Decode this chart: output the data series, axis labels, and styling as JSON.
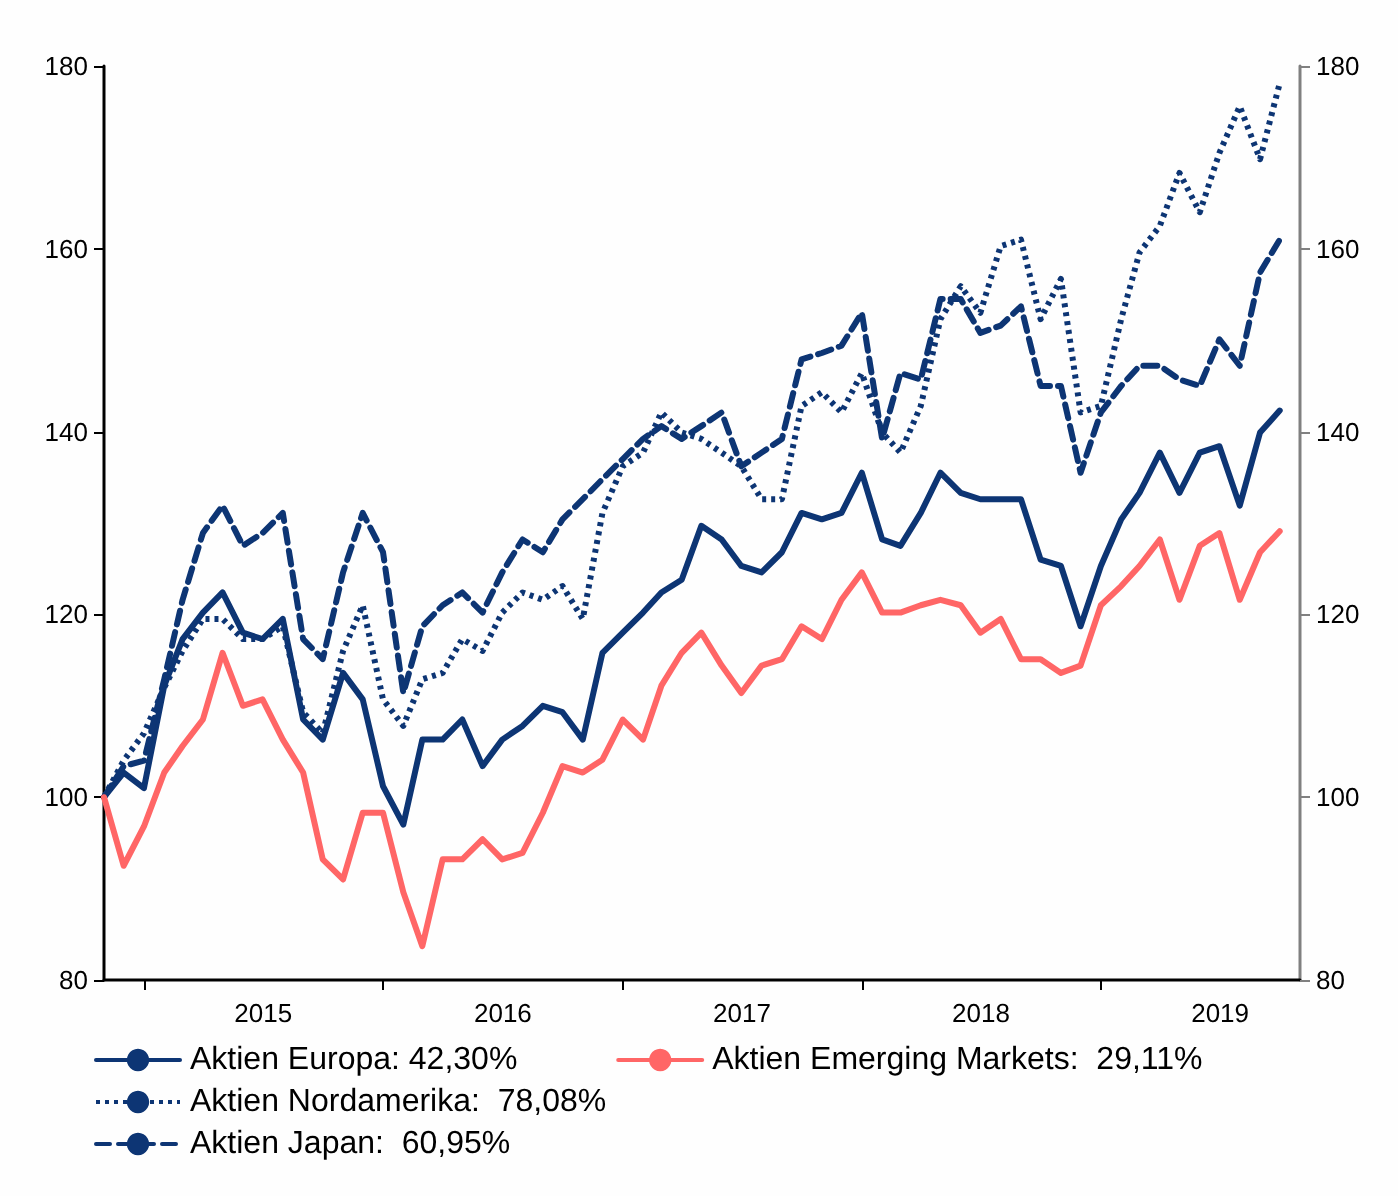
{
  "chart_data": {
    "type": "line",
    "x": [
      "2014-11",
      "2014-12",
      "2015-01",
      "2015-02",
      "2015-03",
      "2015-04",
      "2015-05",
      "2015-06",
      "2015-07",
      "2015-08",
      "2015-09",
      "2015-10",
      "2015-11",
      "2015-12",
      "2016-01",
      "2016-02",
      "2016-03",
      "2016-04",
      "2016-05",
      "2016-06",
      "2016-07",
      "2016-08",
      "2016-09",
      "2016-10",
      "2016-11",
      "2016-12",
      "2017-01",
      "2017-02",
      "2017-03",
      "2017-04",
      "2017-05",
      "2017-06",
      "2017-07",
      "2017-08",
      "2017-09",
      "2017-10",
      "2017-11",
      "2017-12",
      "2018-01",
      "2018-02",
      "2018-03",
      "2018-04",
      "2018-05",
      "2018-06",
      "2018-07",
      "2018-08",
      "2018-09",
      "2018-10",
      "2018-11",
      "2018-12",
      "2019-01",
      "2019-02",
      "2019-03",
      "2019-04",
      "2019-05",
      "2019-06",
      "2019-07",
      "2019-08",
      "2019-09",
      "2019-10"
    ],
    "series": [
      {
        "name": "Aktien Europa: 42,30%",
        "color": "#0d3574",
        "line_style": "solid",
        "values": [
          100,
          102.7,
          101,
          112.2,
          117.3,
          120.2,
          122.4,
          118,
          117.3,
          119.5,
          108.5,
          106.3,
          113.6,
          110.7,
          101.2,
          97,
          106.3,
          106.3,
          108.5,
          103.4,
          106.3,
          107.8,
          110,
          109.3,
          106.3,
          115.8,
          118,
          120.2,
          122.4,
          123.8,
          129.7,
          128.2,
          125.3,
          124.6,
          126.8,
          131.1,
          130.4,
          131.1,
          135.5,
          128.2,
          127.5,
          131.1,
          135.5,
          133.3,
          132.6,
          132.6,
          132.6,
          126,
          125.3,
          118.7,
          125.3,
          130.4,
          133.3,
          137.7,
          133.3,
          137.7,
          138.4,
          131.9,
          139.9,
          142.3
        ]
      },
      {
        "name": "Aktien Nordamerika:  78,08%",
        "color": "#0d3574",
        "line_style": "dotted",
        "values": [
          100,
          104,
          107,
          112,
          116,
          119.5,
          119.5,
          117.3,
          117.3,
          118.7,
          109.3,
          107,
          116,
          121,
          110.7,
          107.8,
          112.9,
          113.6,
          117.3,
          116,
          120.2,
          122.4,
          121.6,
          123.1,
          119.5,
          131.1,
          136.2,
          137.7,
          142.1,
          139.9,
          139.2,
          137.7,
          136.2,
          132.6,
          132.6,
          142.8,
          144.3,
          142.1,
          146.4,
          139.9,
          137.7,
          142.8,
          152.3,
          155.9,
          153,
          160.3,
          161,
          152.3,
          156.7,
          142.1,
          142.8,
          152.3,
          159.6,
          162.5,
          168.3,
          164,
          170.5,
          175.6,
          169.8,
          178.1
        ]
      },
      {
        "name": "Aktien Japan:  60,95%",
        "color": "#0d3574",
        "line_style": "dashed",
        "values": [
          100,
          103.4,
          104,
          112.9,
          121.6,
          128.9,
          131.9,
          127.5,
          128.9,
          131.1,
          117.3,
          115.1,
          124.6,
          131.1,
          126.8,
          111.4,
          118.7,
          121,
          122.4,
          120.2,
          124.6,
          128.2,
          126.8,
          130.4,
          132.6,
          134.8,
          137,
          139.2,
          140.6,
          139.2,
          140.6,
          142.1,
          136.2,
          137.7,
          139.2,
          147.9,
          148.6,
          149.4,
          153,
          139.2,
          146.4,
          145.7,
          154.5,
          154.5,
          150.8,
          151.6,
          153.7,
          145,
          145,
          135.5,
          142.1,
          145,
          147.2,
          147.2,
          145.7,
          145,
          150.1,
          147.2,
          157.4,
          161
        ]
      },
      {
        "name": "Aktien Emerging Markets:  29,11%",
        "color": "#ff6666",
        "line_style": "solid",
        "values": [
          100,
          92.5,
          96.8,
          102.7,
          105.6,
          108.5,
          115.8,
          110,
          110.7,
          106.3,
          102.7,
          93.2,
          91,
          98.3,
          98.3,
          89.6,
          83.7,
          93.2,
          93.2,
          95.4,
          93.2,
          93.9,
          98.3,
          103.4,
          102.7,
          104.1,
          108.5,
          106.3,
          112.2,
          115.8,
          118,
          114.4,
          111.4,
          114.4,
          115.1,
          118.7,
          117.3,
          121.6,
          124.6,
          120.2,
          120.2,
          121,
          121.6,
          121,
          118,
          119.5,
          115.1,
          115.1,
          113.6,
          114.4,
          121,
          123.1,
          125.3,
          128.2,
          121.6,
          127.5,
          128.9,
          121.6,
          126.8,
          129.1
        ]
      }
    ],
    "xlim": [
      "2014-11-01",
      "2019-11-01"
    ],
    "xticks": [
      {
        "value": "2015-01-01",
        "label": null
      },
      {
        "value": "2016-01-01",
        "label": null
      },
      {
        "value": "2017-01-01",
        "label": null
      },
      {
        "value": "2018-01-01",
        "label": null
      },
      {
        "value": "2019-01-01",
        "label": null
      },
      {
        "value": "2015-07-02",
        "label": "2015"
      },
      {
        "value": "2016-07-02",
        "label": "2016"
      },
      {
        "value": "2017-07-02",
        "label": "2017"
      },
      {
        "value": "2018-07-02",
        "label": "2018"
      },
      {
        "value": "2019-07-02",
        "label": "2019"
      }
    ],
    "ylim": [
      80,
      180
    ],
    "yticks": [
      80,
      100,
      120,
      140,
      160,
      180
    ],
    "y2lim": [
      80,
      180
    ],
    "y2ticks": [
      80,
      100,
      120,
      140,
      160,
      180
    ],
    "grid": false,
    "legend": "bottom",
    "marker": "none"
  }
}
